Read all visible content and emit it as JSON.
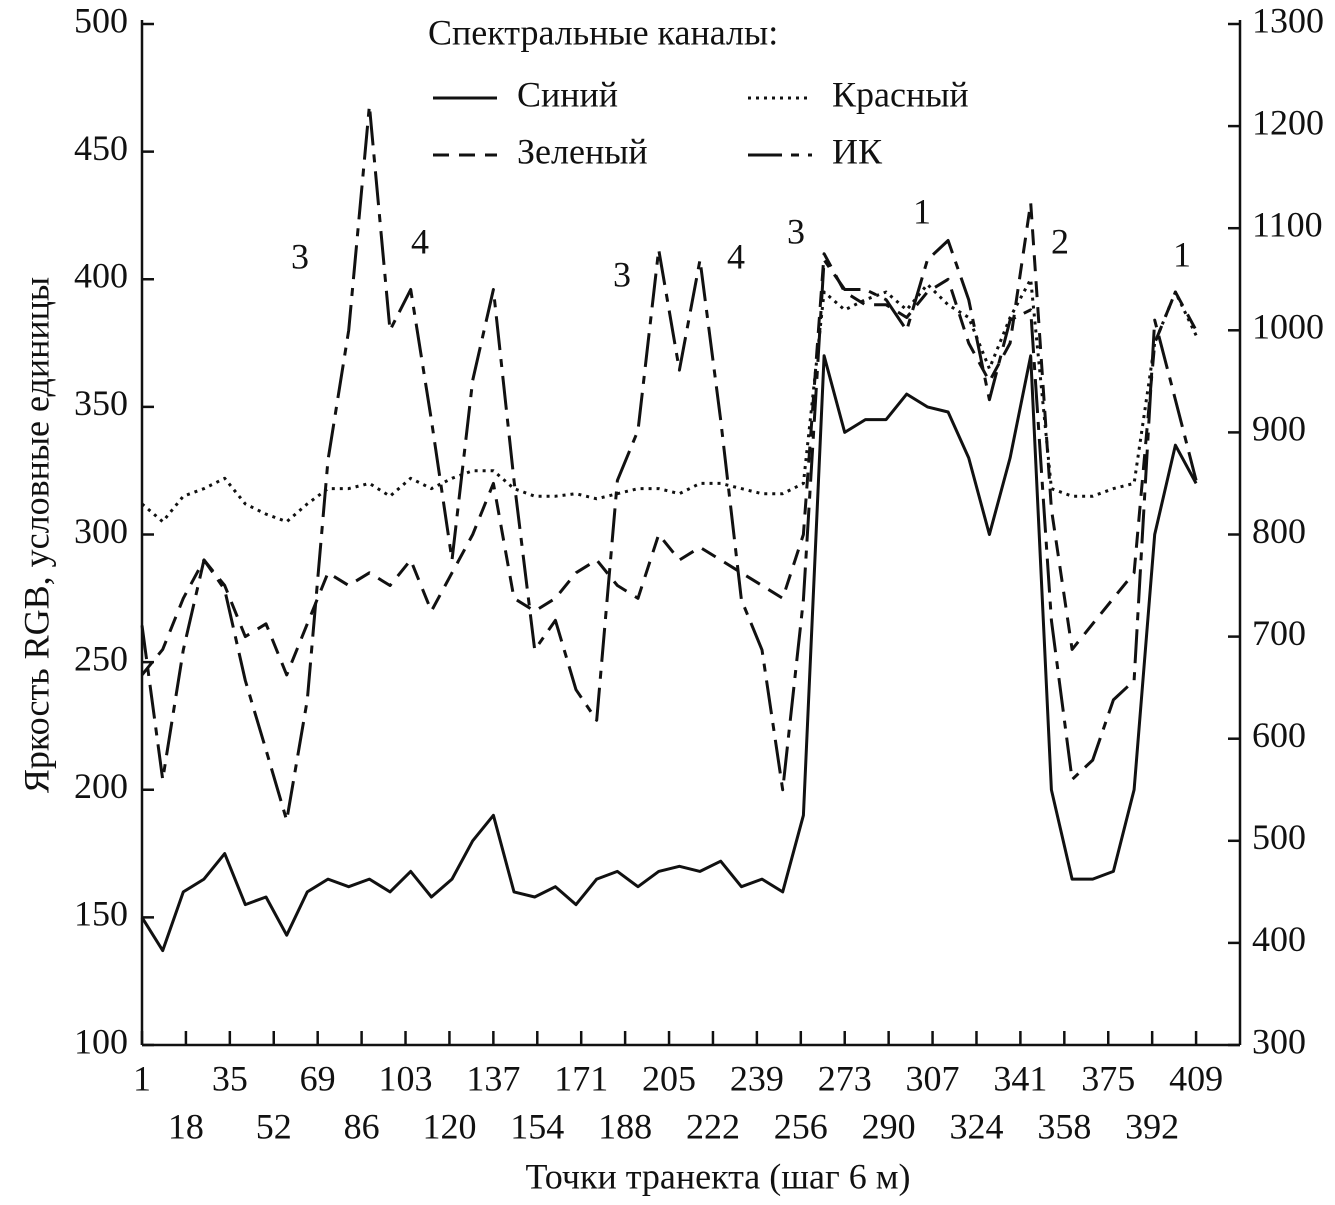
{
  "chart_data": {
    "type": "line",
    "ylabel": "Яркость RGB, условные единицы",
    "xlabel": "Точки транекта (шаг 6 м)",
    "legend_title": "Спектральные каналы:",
    "x": [
      1,
      9,
      17,
      25,
      33,
      41,
      49,
      57,
      65,
      73,
      81,
      89,
      97,
      105,
      113,
      121,
      129,
      137,
      145,
      153,
      161,
      169,
      177,
      185,
      193,
      201,
      209,
      217,
      225,
      233,
      241,
      249,
      257,
      265,
      273,
      281,
      289,
      297,
      305,
      313,
      321,
      329,
      337,
      345,
      353,
      361,
      369,
      377,
      385,
      393,
      401,
      409
    ],
    "xlim": [
      1,
      426
    ],
    "xticks": [
      1,
      18,
      35,
      52,
      69,
      86,
      103,
      120,
      137,
      154,
      171,
      188,
      205,
      222,
      239,
      256,
      273,
      290,
      307,
      324,
      341,
      358,
      375,
      392,
      409
    ],
    "ylim": [
      100,
      500
    ],
    "yticks": [
      100,
      150,
      200,
      250,
      300,
      350,
      400,
      450,
      500
    ],
    "y2lim": [
      300,
      1300
    ],
    "y2ticks": [
      300,
      400,
      500,
      600,
      700,
      800,
      900,
      1000,
      1100,
      1200,
      1300
    ],
    "series": [
      {
        "name": "Синий",
        "color": "#111111",
        "dash": "solid",
        "values": [
          150,
          137,
          160,
          165,
          175,
          155,
          158,
          143,
          160,
          165,
          162,
          165,
          160,
          168,
          158,
          165,
          180,
          190,
          160,
          158,
          162,
          155,
          165,
          168,
          162,
          168,
          170,
          168,
          172,
          162,
          165,
          160,
          190,
          370,
          340,
          345,
          345,
          355,
          350,
          348,
          330,
          300,
          330,
          370,
          200,
          165,
          165,
          168,
          200,
          300,
          335,
          320
        ]
      },
      {
        "name": "Зеленый",
        "color": "#111111",
        "dash": "dashed",
        "values": [
          245,
          255,
          275,
          290,
          280,
          260,
          265,
          245,
          265,
          285,
          280,
          285,
          280,
          290,
          270,
          285,
          300,
          320,
          275,
          270,
          275,
          285,
          290,
          280,
          275,
          300,
          290,
          295,
          290,
          285,
          280,
          275,
          300,
          410,
          395,
          390,
          390,
          385,
          395,
          400,
          375,
          360,
          375,
          430,
          310,
          255,
          265,
          275,
          285,
          375,
          395,
          380
        ]
      },
      {
        "name": "Красный",
        "color": "#111111",
        "dash": "dotted",
        "values": [
          312,
          305,
          315,
          318,
          322,
          312,
          308,
          305,
          312,
          318,
          318,
          320,
          315,
          322,
          318,
          322,
          325,
          325,
          318,
          315,
          315,
          316,
          314,
          316,
          318,
          318,
          316,
          320,
          320,
          318,
          316,
          316,
          320,
          395,
          388,
          392,
          395,
          388,
          398,
          390,
          385,
          365,
          385,
          400,
          318,
          315,
          315,
          318,
          320,
          375,
          395,
          378
        ]
      },
      {
        "name": "ИК",
        "color": "#111111",
        "dash": "dashdot",
        "axis": "y2",
        "values": [
          711,
          560,
          687,
          775,
          746,
          657,
          589,
          520,
          638,
          873,
          1000,
          1220,
          1000,
          1040,
          912,
          775,
          951,
          1040,
          853,
          687,
          716,
          648,
          618,
          853,
          902,
          1079,
          961,
          1069,
          912,
          736,
          687,
          550,
          736,
          1069,
          1040,
          1040,
          1030,
          1000,
          1069,
          1088,
          1030,
          932,
          1010,
          1020,
          716,
          560,
          579,
          638,
          657,
          1010,
          932,
          853
        ]
      }
    ],
    "annotations": [
      "3",
      "4",
      "3",
      "4",
      "3",
      "1",
      "2",
      "1"
    ]
  }
}
